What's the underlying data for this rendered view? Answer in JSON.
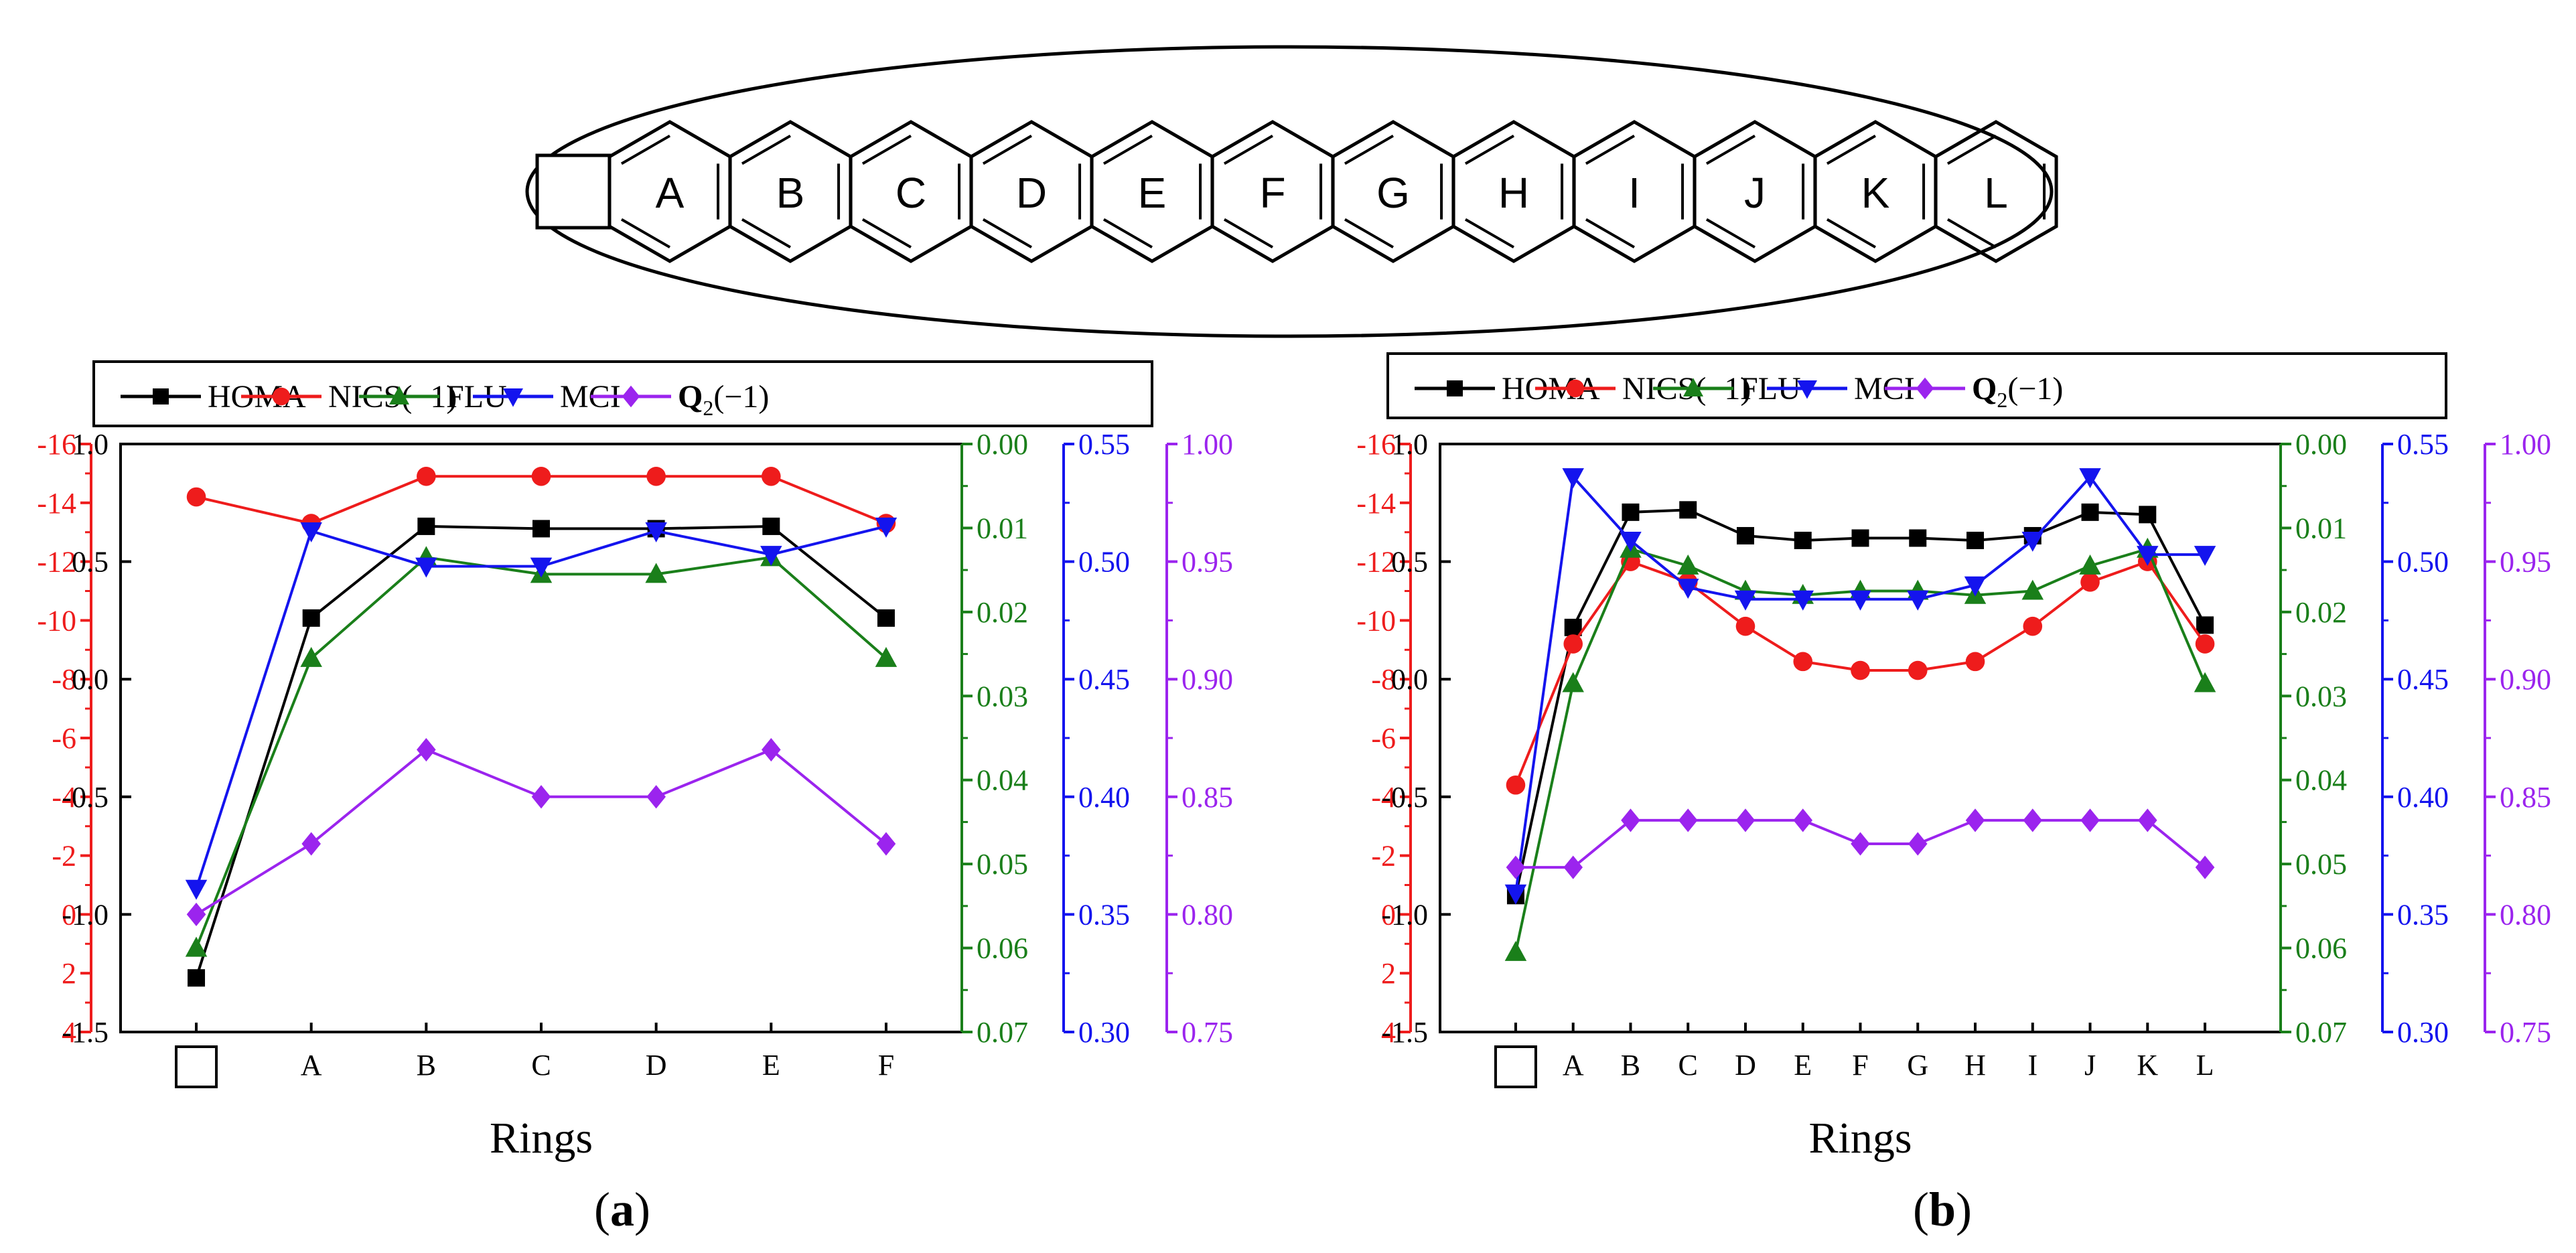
{
  "colors": {
    "homa": "#000000",
    "nics": "#ee1c1c",
    "flu": "#1a7f1a",
    "mci": "#1414ee",
    "q2": "#9b24ee"
  },
  "molecule": {
    "ring_labels": [
      "A",
      "B",
      "C",
      "D",
      "E",
      "F",
      "G",
      "H",
      "I",
      "J",
      "K",
      "L"
    ]
  },
  "legend": {
    "homa": "HOMA",
    "nics": "NICS(−1)",
    "flu": "FLU",
    "mci": "MCI",
    "q2_main": "Q",
    "q2_sub": "2",
    "q2_rest": "(−1)"
  },
  "chart_data": [
    {
      "type": "line",
      "panel_label": "a",
      "xlabel": "Rings",
      "categories": [
        "□",
        "A",
        "B",
        "C",
        "D",
        "E",
        "F"
      ],
      "axes": {
        "homa": {
          "range": [
            -1.5,
            1.0
          ],
          "ticks": [
            "1.0",
            "0.5",
            "0.0",
            "-0.5",
            "-1.0",
            "-1.5"
          ]
        },
        "nics": {
          "range": [
            4,
            -16
          ],
          "ticks": [
            "-16",
            "-14",
            "-12",
            "-10",
            "-8",
            "-6",
            "-4",
            "-2",
            "0",
            "2",
            "4"
          ]
        },
        "flu": {
          "range": [
            0.07,
            0.0
          ],
          "ticks": [
            "0.00",
            "0.01",
            "0.02",
            "0.03",
            "0.04",
            "0.05",
            "0.06",
            "0.07"
          ]
        },
        "mci": {
          "range": [
            0.3,
            0.55
          ],
          "ticks": [
            "0.55",
            "0.50",
            "0.45",
            "0.40",
            "0.35",
            "0.30"
          ]
        },
        "q2": {
          "range": [
            0.75,
            1.0
          ],
          "ticks": [
            "1.00",
            "0.95",
            "0.90",
            "0.85",
            "0.80",
            "0.75"
          ]
        }
      },
      "series": [
        {
          "key": "homa",
          "name": "HOMA",
          "values": [
            -1.27,
            0.26,
            0.65,
            0.64,
            0.64,
            0.65,
            0.26
          ]
        },
        {
          "key": "nics",
          "name": "NICS(−1)",
          "values": [
            -14.2,
            -13.3,
            -14.9,
            -14.9,
            -14.9,
            -14.9,
            -13.3
          ]
        },
        {
          "key": "flu",
          "name": "FLU",
          "values": [
            0.06,
            0.0255,
            0.0135,
            0.0155,
            0.0155,
            0.0135,
            0.0255
          ]
        },
        {
          "key": "mci",
          "name": "MCI",
          "values": [
            0.361,
            0.513,
            0.498,
            0.498,
            0.513,
            0.503,
            0.515
          ]
        },
        {
          "key": "q2",
          "name": "Q2(−1)",
          "values": [
            0.8,
            0.83,
            0.87,
            0.85,
            0.85,
            0.87,
            0.83
          ]
        }
      ]
    },
    {
      "type": "line",
      "panel_label": "b",
      "xlabel": "Rings",
      "categories": [
        "□",
        "A",
        "B",
        "C",
        "D",
        "E",
        "F",
        "G",
        "H",
        "I",
        "J",
        "K",
        "L"
      ],
      "axes": {
        "homa": {
          "range": [
            -1.5,
            1.0
          ],
          "ticks": [
            "1.0",
            "0.5",
            "0.0",
            "-0.5",
            "-1.0",
            "-1.5"
          ]
        },
        "nics": {
          "range": [
            4,
            -16
          ],
          "ticks": [
            "-16",
            "-14",
            "-12",
            "-10",
            "-8",
            "-6",
            "-4",
            "-2",
            "0",
            "2",
            "4"
          ]
        },
        "flu": {
          "range": [
            0.07,
            0.0
          ],
          "ticks": [
            "0.00",
            "0.01",
            "0.02",
            "0.03",
            "0.04",
            "0.05",
            "0.06",
            "0.07"
          ]
        },
        "mci": {
          "range": [
            0.3,
            0.55
          ],
          "ticks": [
            "0.55",
            "0.50",
            "0.45",
            "0.40",
            "0.35",
            "0.30"
          ]
        },
        "q2": {
          "range": [
            0.75,
            1.0
          ],
          "ticks": [
            "1.00",
            "0.95",
            "0.90",
            "0.85",
            "0.80",
            "0.75"
          ]
        }
      },
      "series": [
        {
          "key": "homa",
          "name": "HOMA",
          "values": [
            -0.92,
            0.22,
            0.71,
            0.72,
            0.61,
            0.59,
            0.6,
            0.6,
            0.59,
            0.61,
            0.71,
            0.7,
            0.23
          ]
        },
        {
          "key": "nics",
          "name": "NICS(−1)",
          "values": [
            -4.4,
            -9.2,
            -12.0,
            -11.3,
            -9.8,
            -8.6,
            -8.3,
            -8.3,
            -8.6,
            -9.8,
            -11.3,
            -12.0,
            -9.2
          ]
        },
        {
          "key": "flu",
          "name": "FLU",
          "values": [
            0.0605,
            0.0285,
            0.0125,
            0.0145,
            0.0175,
            0.018,
            0.0175,
            0.0175,
            0.018,
            0.0175,
            0.0145,
            0.0125,
            0.0285
          ]
        },
        {
          "key": "mci",
          "name": "MCI",
          "values": [
            0.359,
            0.536,
            0.509,
            0.489,
            0.484,
            0.484,
            0.484,
            0.484,
            0.49,
            0.509,
            0.536,
            0.503,
            0.503
          ]
        },
        {
          "key": "q2",
          "name": "Q2(−1)",
          "values": [
            0.82,
            0.82,
            0.84,
            0.84,
            0.84,
            0.84,
            0.83,
            0.83,
            0.84,
            0.84,
            0.84,
            0.84,
            0.82
          ]
        }
      ]
    }
  ]
}
